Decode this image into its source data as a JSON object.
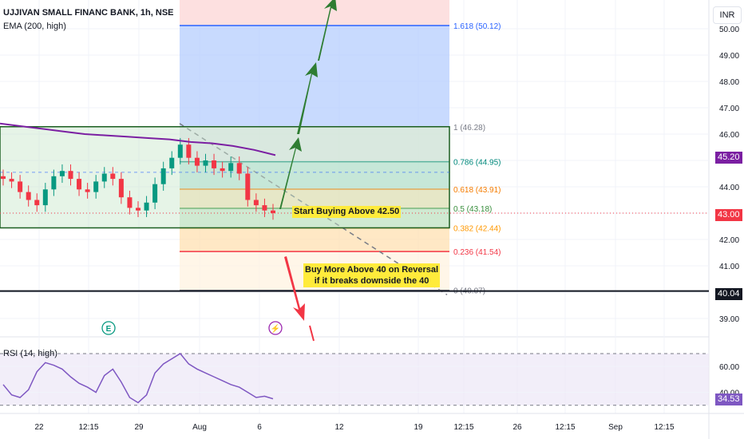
{
  "header": {
    "title": "UJJIVAN SMALL FINANC BANK, 1h, NSE",
    "ema": "EMA (200, high)",
    "currency": "INR"
  },
  "rsi_label": "RSI (14, high)",
  "notes": {
    "start_buying": "Start Buying Above 42.50",
    "buy_more_line1": "Buy More Above 40 on Reversal",
    "buy_more_line2": "if it breaks downside the 40"
  },
  "badges": {
    "ema_value": "45.20",
    "last_price": "43.00",
    "support": "40.04",
    "rsi_value": "34.53",
    "colors": {
      "ema": "#7b1fa2",
      "last": "#f23645",
      "support": "#131722",
      "rsi": "#7e57c2"
    }
  },
  "event_icons": [
    {
      "name": "earnings-icon",
      "glyph": "E",
      "color": "#089981"
    },
    {
      "name": "dividend-icon",
      "glyph": "⚡",
      "color": "#9c27b0"
    }
  ],
  "chart_data": [
    {
      "type": "candlestick",
      "title": "UJJIVAN SMALL FINANC BANK, 1h, NSE",
      "x_ticks": [
        "22",
        "12:15",
        "29",
        "Aug",
        "6",
        "12",
        "19",
        "12:15",
        "26",
        "12:15",
        "Sep",
        "12:15"
      ],
      "y_ticks": [
        "39.00",
        "40.00",
        "41.00",
        "42.00",
        "43.00",
        "44.00",
        "45.00",
        "46.00",
        "47.00",
        "48.00",
        "49.00",
        "50.00"
      ],
      "ylim": [
        38.4,
        50.9
      ],
      "series": [
        {
          "name": "EMA (200, high)",
          "color": "#7b1fa2",
          "values": [
            46.4,
            46.3,
            46.2,
            46.1,
            46.0,
            45.95,
            45.9,
            45.85,
            45.8,
            45.7,
            45.65,
            45.55,
            45.4,
            45.2
          ]
        },
        {
          "name": "",
          "type": "ohlc",
          "close": [
            44.3,
            44.2,
            43.8,
            43.5,
            43.3,
            43.9,
            44.4,
            44.6,
            44.3,
            43.9,
            43.8,
            44.2,
            44.5,
            44.3,
            43.6,
            43.2,
            43.1,
            43.4,
            44.1,
            44.7,
            45.1,
            45.6,
            45.1,
            44.8,
            45.0,
            44.7,
            44.6,
            44.9,
            44.5,
            43.5,
            43.3,
            43.1,
            43.0
          ]
        }
      ],
      "fibonacci": [
        {
          "ratio": "1.618",
          "price": 50.12,
          "color": "#2962ff"
        },
        {
          "ratio": "1",
          "price": 46.28,
          "color": "#787b86"
        },
        {
          "ratio": "0.786",
          "price": 44.95,
          "color": "#00897b"
        },
        {
          "ratio": "0.618",
          "price": 43.91,
          "color": "#f57c00"
        },
        {
          "ratio": "0.5",
          "price": 43.18,
          "color": "#388e3c"
        },
        {
          "ratio": "0.382",
          "price": 42.44,
          "color": "#ff9800"
        },
        {
          "ratio": "0.236",
          "price": 41.54,
          "color": "#f23645"
        },
        {
          "ratio": "0",
          "price": 40.07,
          "color": "#787b86"
        }
      ],
      "channel": {
        "upper": 46.28,
        "lower": 42.44
      },
      "horizontal_line": 40.04,
      "last_price": 43.0,
      "ema_last": 45.2
    },
    {
      "type": "line",
      "title": "RSI (14, high)",
      "y_ticks": [
        "40.00",
        "60.00"
      ],
      "ylim": [
        22,
        74
      ],
      "bands": [
        30,
        70
      ],
      "series": [
        {
          "name": "RSI (14, high)",
          "color": "#7e57c2",
          "values": [
            46,
            38,
            36,
            42,
            56,
            63,
            61,
            58,
            52,
            47,
            44,
            40,
            53,
            58,
            48,
            36,
            32,
            38,
            55,
            62,
            66,
            70,
            62,
            58,
            55,
            52,
            49,
            46,
            44,
            40,
            36,
            37,
            35
          ]
        }
      ],
      "last_value": 34.53
    }
  ]
}
